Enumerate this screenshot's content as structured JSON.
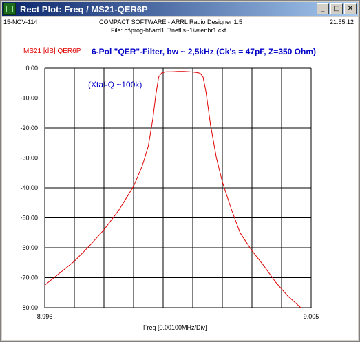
{
  "window": {
    "title": "Rect Plot: Freq / MS21-QER6P",
    "minimize_glyph": "_",
    "maximize_glyph": "□",
    "close_glyph": "✕"
  },
  "header": {
    "date": "15-NOV-114",
    "software": "COMPACT SOFTWARE - ARRL Radio Designer 1.5",
    "time": "21:55:12",
    "file": "File: c:\\prog-hf\\ard1.5\\netlis~1\\wienbr1.ckt"
  },
  "colors": {
    "trace": "#e00000",
    "title": "#0000c8",
    "grid": "#000000"
  },
  "chart_data": {
    "type": "line",
    "title": "6-Pol \"QER\"-Filter, bw ~ 2,5kHz (Ck's = 47pF, Z=350 Ohm)",
    "annotation": "(Xtal-Q ~100k)",
    "xlabel": "Freq [0.00100MHz/Div]",
    "x_tick_labels": [
      "8.996",
      "9.005"
    ],
    "xlim": [
      8.996,
      9.005
    ],
    "ylim": [
      -80,
      0
    ],
    "y_ticks": [
      0,
      -10,
      -20,
      -30,
      -40,
      -50,
      -60,
      -70,
      -80
    ],
    "y_tick_labels": [
      "0.00",
      "-10.00",
      "-20.00",
      "-30.00",
      "-40.00",
      "-50.00",
      "-60.00",
      "-70.00",
      "-80.00"
    ],
    "grid": true,
    "series": [
      {
        "name": "MS21 [dB] QER6P",
        "color": "#e00000",
        "x": [
          8.996,
          8.9965,
          8.997,
          8.9975,
          8.998,
          8.9985,
          8.999,
          8.9993,
          8.9995,
          8.99965,
          8.99975,
          8.99985,
          8.99995,
          9.0001,
          9.0003,
          9.0005,
          9.0007,
          9.0009,
          9.0011,
          9.00125,
          9.00135,
          9.00145,
          9.0016,
          9.0018,
          9.002,
          9.0023,
          9.0026,
          9.003,
          9.0034,
          9.0038,
          9.0042,
          9.00465
        ],
        "y": [
          -72.5,
          -68.5,
          -64.5,
          -59.5,
          -54.0,
          -47.5,
          -39.5,
          -32.5,
          -26.0,
          -17.0,
          -9.0,
          -3.0,
          -1.6,
          -1.2,
          -1.2,
          -1.1,
          -1.1,
          -1.2,
          -1.4,
          -1.7,
          -3.0,
          -8.0,
          -19.0,
          -30.0,
          -38.0,
          -47.0,
          -55.0,
          -61.0,
          -66.0,
          -71.5,
          -76.0,
          -80.0
        ]
      }
    ]
  }
}
